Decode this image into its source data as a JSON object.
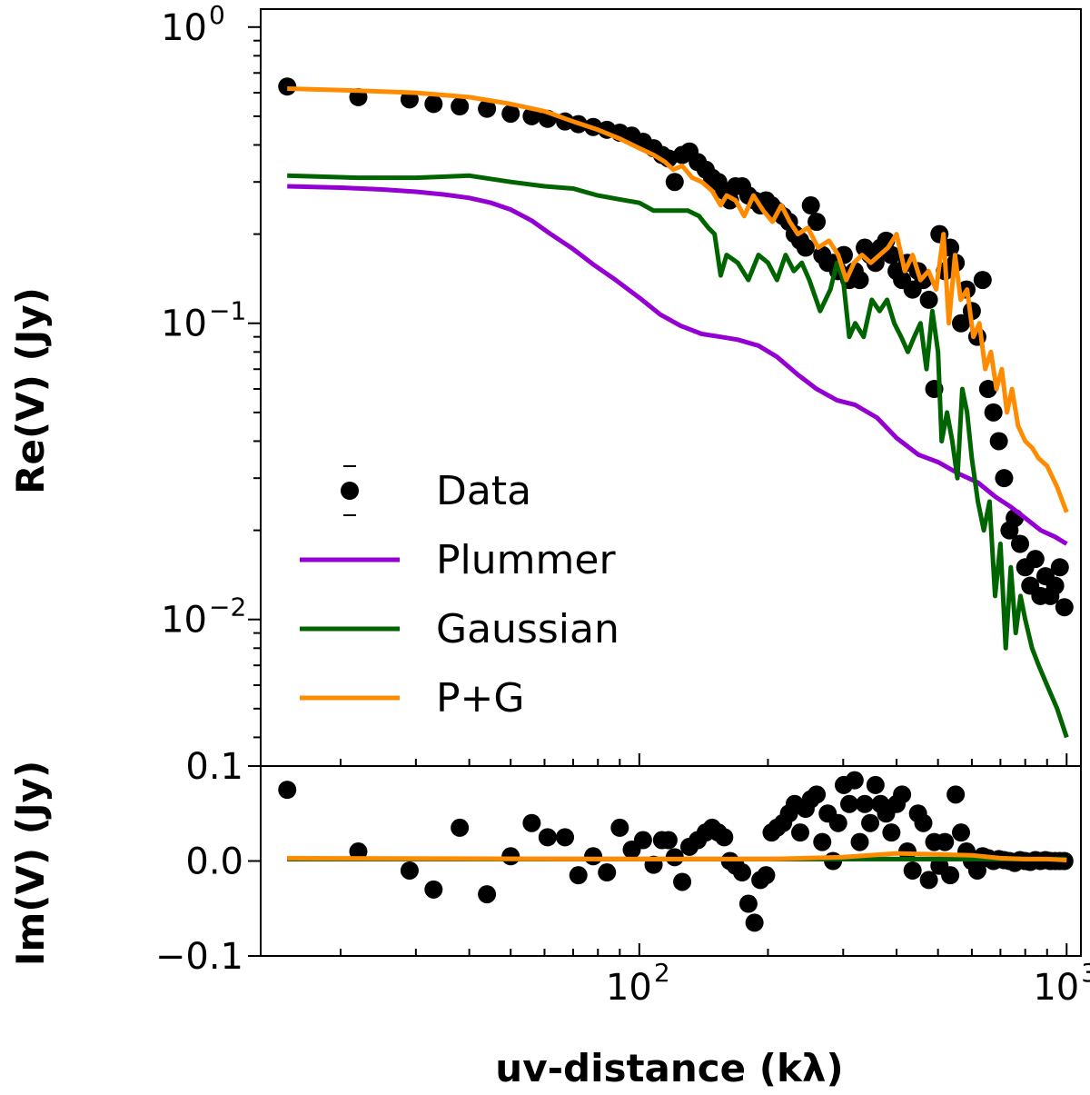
{
  "chart_data": {
    "type": "scatter",
    "xscale": "log",
    "xlim": [
      13,
      1080
    ],
    "xlabel": "uv-distance (kλ)",
    "x_ticks": [
      {
        "value": 100,
        "base": "10",
        "exp": "2"
      },
      {
        "value": 1000,
        "base": "10",
        "exp": "3"
      }
    ],
    "colors": {
      "data": "#000000",
      "plummer": "#9400d3",
      "gaussian": "#006400",
      "pg": "#ff8c00"
    },
    "panels": [
      {
        "name": "real",
        "ylabel": "Re(V) (Jy)",
        "yscale": "log",
        "ylim": [
          0.0032,
          1.15
        ],
        "y_ticks": [
          {
            "value": 1,
            "base": "10",
            "exp": "0"
          },
          {
            "value": 0.1,
            "base": "10",
            "exp": "−1"
          },
          {
            "value": 0.01,
            "base": "10",
            "exp": "−2"
          }
        ],
        "data_x": [
          15,
          22,
          29,
          33,
          38,
          44,
          50,
          56,
          61,
          67,
          72,
          78,
          84,
          90,
          96,
          102,
          108,
          113,
          117,
          121,
          126,
          131,
          137,
          143,
          148,
          153,
          158,
          163,
          168,
          174,
          180,
          186,
          192,
          198,
          204,
          210,
          217,
          224,
          231,
          238,
          245,
          252,
          260,
          268,
          276,
          284,
          292,
          301,
          310,
          319,
          328,
          337,
          347,
          357,
          367,
          378,
          389,
          400,
          412,
          424,
          436,
          449,
          462,
          476,
          490,
          504,
          519,
          534,
          550,
          566,
          583,
          600,
          618,
          636,
          655,
          674,
          694,
          714,
          735,
          756,
          778,
          800,
          822,
          845,
          868,
          892,
          916,
          940,
          964,
          988
        ],
        "data_y": [
          0.63,
          0.58,
          0.57,
          0.55,
          0.54,
          0.53,
          0.51,
          0.5,
          0.49,
          0.48,
          0.47,
          0.46,
          0.45,
          0.44,
          0.43,
          0.41,
          0.39,
          0.37,
          0.36,
          0.3,
          0.37,
          0.38,
          0.35,
          0.33,
          0.31,
          0.3,
          0.28,
          0.26,
          0.29,
          0.29,
          0.27,
          0.26,
          0.25,
          0.26,
          0.25,
          0.24,
          0.23,
          0.22,
          0.2,
          0.19,
          0.18,
          0.25,
          0.22,
          0.17,
          0.16,
          0.16,
          0.15,
          0.17,
          0.14,
          0.15,
          0.14,
          0.18,
          0.17,
          0.16,
          0.18,
          0.19,
          0.17,
          0.15,
          0.14,
          0.16,
          0.13,
          0.15,
          0.14,
          0.12,
          0.06,
          0.2,
          0.15,
          0.18,
          0.16,
          0.1,
          0.13,
          0.11,
          0.09,
          0.14,
          0.06,
          0.05,
          0.04,
          0.03,
          0.02,
          0.022,
          0.018,
          0.015,
          0.013,
          0.016,
          0.012,
          0.014,
          0.012,
          0.013,
          0.015,
          0.011
        ],
        "series": [
          {
            "name": "Plummer",
            "color_key": "plummer",
            "x": [
              15,
              20,
              25,
              30,
              35,
              40,
              45,
              50,
              56,
              62,
              70,
              78,
              88,
              100,
              112,
              125,
              140,
              155,
              170,
              190,
              210,
              235,
              260,
              290,
              320,
              360,
              400,
              450,
              500,
              560,
              620,
              680,
              740,
              800,
              870,
              940,
              1000
            ],
            "y": [
              0.29,
              0.287,
              0.283,
              0.278,
              0.272,
              0.265,
              0.255,
              0.242,
              0.222,
              0.2,
              0.178,
              0.158,
              0.14,
              0.122,
              0.107,
              0.098,
              0.092,
              0.09,
              0.088,
              0.084,
              0.077,
              0.067,
              0.06,
              0.055,
              0.053,
              0.048,
              0.041,
              0.036,
              0.034,
              0.031,
              0.029,
              0.026,
              0.024,
              0.022,
              0.02,
              0.019,
              0.018
            ]
          },
          {
            "name": "Gaussian",
            "color_key": "gaussian",
            "x": [
              15,
              22,
              30,
              40,
              50,
              60,
              70,
              80,
              90,
              100,
              108,
              115,
              122,
              130,
              138,
              145,
              150,
              155,
              160,
              170,
              180,
              190,
              200,
              210,
              220,
              230,
              240,
              250,
              265,
              280,
              290,
              300,
              310,
              320,
              335,
              350,
              365,
              380,
              395,
              410,
              425,
              440,
              455,
              470,
              485,
              500,
              510,
              525,
              540,
              555,
              570,
              585,
              600,
              620,
              640,
              660,
              680,
              700,
              720,
              740,
              760,
              780,
              800,
              830,
              860,
              900,
              950,
              1000
            ],
            "y": [
              0.315,
              0.31,
              0.31,
              0.315,
              0.3,
              0.29,
              0.285,
              0.27,
              0.262,
              0.255,
              0.24,
              0.24,
              0.24,
              0.24,
              0.23,
              0.21,
              0.2,
              0.145,
              0.17,
              0.16,
              0.14,
              0.17,
              0.16,
              0.14,
              0.17,
              0.15,
              0.16,
              0.14,
              0.11,
              0.13,
              0.16,
              0.14,
              0.09,
              0.1,
              0.09,
              0.12,
              0.11,
              0.12,
              0.1,
              0.09,
              0.08,
              0.09,
              0.1,
              0.07,
              0.11,
              0.08,
              0.04,
              0.05,
              0.04,
              0.03,
              0.06,
              0.05,
              0.035,
              0.025,
              0.02,
              0.025,
              0.012,
              0.018,
              0.008,
              0.015,
              0.009,
              0.012,
              0.01,
              0.008,
              0.007,
              0.006,
              0.005,
              0.004
            ]
          },
          {
            "name": "P+G",
            "color_key": "pg",
            "x": [
              15,
              22,
              30,
              40,
              50,
              60,
              70,
              80,
              90,
              100,
              108,
              115,
              120,
              126,
              133,
              140,
              148,
              155,
              160,
              168,
              176,
              185,
              195,
              205,
              215,
              225,
              235,
              248,
              262,
              278,
              292,
              305,
              318,
              332,
              348,
              365,
              382,
              400,
              418,
              436,
              455,
              475,
              495,
              515,
              530,
              548,
              565,
              585,
              605,
              625,
              645,
              665,
              685,
              705,
              725,
              745,
              770,
              800,
              830,
              860,
              900,
              950,
              1000
            ],
            "y": [
              0.62,
              0.61,
              0.6,
              0.58,
              0.55,
              0.52,
              0.48,
              0.45,
              0.42,
              0.39,
              0.37,
              0.35,
              0.33,
              0.34,
              0.31,
              0.3,
              0.28,
              0.25,
              0.27,
              0.26,
              0.23,
              0.27,
              0.24,
              0.22,
              0.25,
              0.22,
              0.2,
              0.21,
              0.18,
              0.19,
              0.17,
              0.14,
              0.16,
              0.17,
              0.16,
              0.17,
              0.18,
              0.2,
              0.15,
              0.17,
              0.14,
              0.15,
              0.13,
              0.2,
              0.1,
              0.17,
              0.12,
              0.13,
              0.09,
              0.1,
              0.07,
              0.08,
              0.06,
              0.07,
              0.05,
              0.06,
              0.045,
              0.04,
              0.038,
              0.035,
              0.033,
              0.028,
              0.023
            ]
          }
        ]
      },
      {
        "name": "imag",
        "ylabel": "Im(V) (Jy)",
        "yscale": "linear",
        "ylim": [
          -0.1,
          0.1
        ],
        "y_ticks": [
          {
            "value": 0.1,
            "label": "0.1"
          },
          {
            "value": 0.0,
            "label": "0.0"
          },
          {
            "value": -0.1,
            "label": "−0.1"
          }
        ],
        "data_x": [
          15,
          22,
          29,
          33,
          38,
          44,
          50,
          56,
          61,
          67,
          72,
          78,
          84,
          90,
          96,
          102,
          108,
          113,
          117,
          121,
          126,
          131,
          137,
          143,
          148,
          153,
          158,
          163,
          168,
          174,
          180,
          186,
          192,
          198,
          204,
          210,
          217,
          224,
          231,
          238,
          245,
          252,
          260,
          268,
          276,
          284,
          292,
          301,
          310,
          319,
          328,
          337,
          347,
          357,
          367,
          378,
          389,
          400,
          412,
          424,
          436,
          449,
          462,
          476,
          490,
          504,
          519,
          534,
          550,
          566,
          583,
          600,
          618,
          636,
          655,
          674,
          694,
          714,
          735,
          756,
          778,
          800,
          822,
          845,
          868,
          892,
          916,
          940,
          964,
          988
        ],
        "data_y": [
          0.075,
          0.01,
          -0.01,
          -0.03,
          0.035,
          -0.035,
          0.005,
          0.04,
          0.025,
          0.025,
          -0.015,
          0.005,
          -0.012,
          0.035,
          0.012,
          0.022,
          -0.004,
          0.022,
          0.022,
          0.004,
          -0.022,
          0.015,
          0.022,
          0.03,
          0.035,
          0.03,
          0.025,
          0.0,
          -0.005,
          -0.012,
          -0.045,
          -0.065,
          -0.02,
          -0.015,
          0.03,
          0.035,
          0.04,
          0.05,
          0.06,
          0.03,
          0.055,
          0.065,
          0.07,
          0.02,
          0.05,
          0.0,
          0.04,
          0.08,
          0.06,
          0.085,
          0.02,
          0.06,
          0.04,
          0.08,
          0.06,
          0.05,
          0.03,
          0.06,
          0.07,
          0.01,
          -0.01,
          0.05,
          0.04,
          -0.02,
          0.02,
          -0.005,
          0.02,
          -0.015,
          0.07,
          0.03,
          0.01,
          0.0,
          -0.01,
          0.005,
          0.003,
          0.0,
          0.002,
          0.001,
          0.0,
          -0.002,
          0.001,
          0.0,
          -0.001,
          0.001,
          0.0,
          0.001,
          0.0,
          0.0,
          0.0,
          0.0
        ],
        "series": [
          {
            "name": "Plummer",
            "color_key": "plummer",
            "x": [
              15,
              1000
            ],
            "y": [
              0.002,
              0.002
            ]
          },
          {
            "name": "Gaussian",
            "color_key": "gaussian",
            "x": [
              15,
              1000
            ],
            "y": [
              0.002,
              0.002
            ]
          },
          {
            "name": "P+G",
            "color_key": "pg",
            "x": [
              15,
              100,
              200,
              300,
              400,
              500,
              600,
              700,
              800,
              900,
              1000
            ],
            "y": [
              0.003,
              0.002,
              0.002,
              0.004,
              0.008,
              0.007,
              0.006,
              0.003,
              0.002,
              0.002,
              0.001
            ]
          }
        ]
      }
    ],
    "legend": {
      "position": "lower-left",
      "entries": [
        {
          "label": "Data",
          "type": "errorbar-point",
          "color_key": "data"
        },
        {
          "label": "Plummer",
          "type": "line",
          "color_key": "plummer"
        },
        {
          "label": "Gaussian",
          "type": "line",
          "color_key": "gaussian"
        },
        {
          "label": "P+G",
          "type": "line",
          "color_key": "pg"
        }
      ]
    }
  }
}
